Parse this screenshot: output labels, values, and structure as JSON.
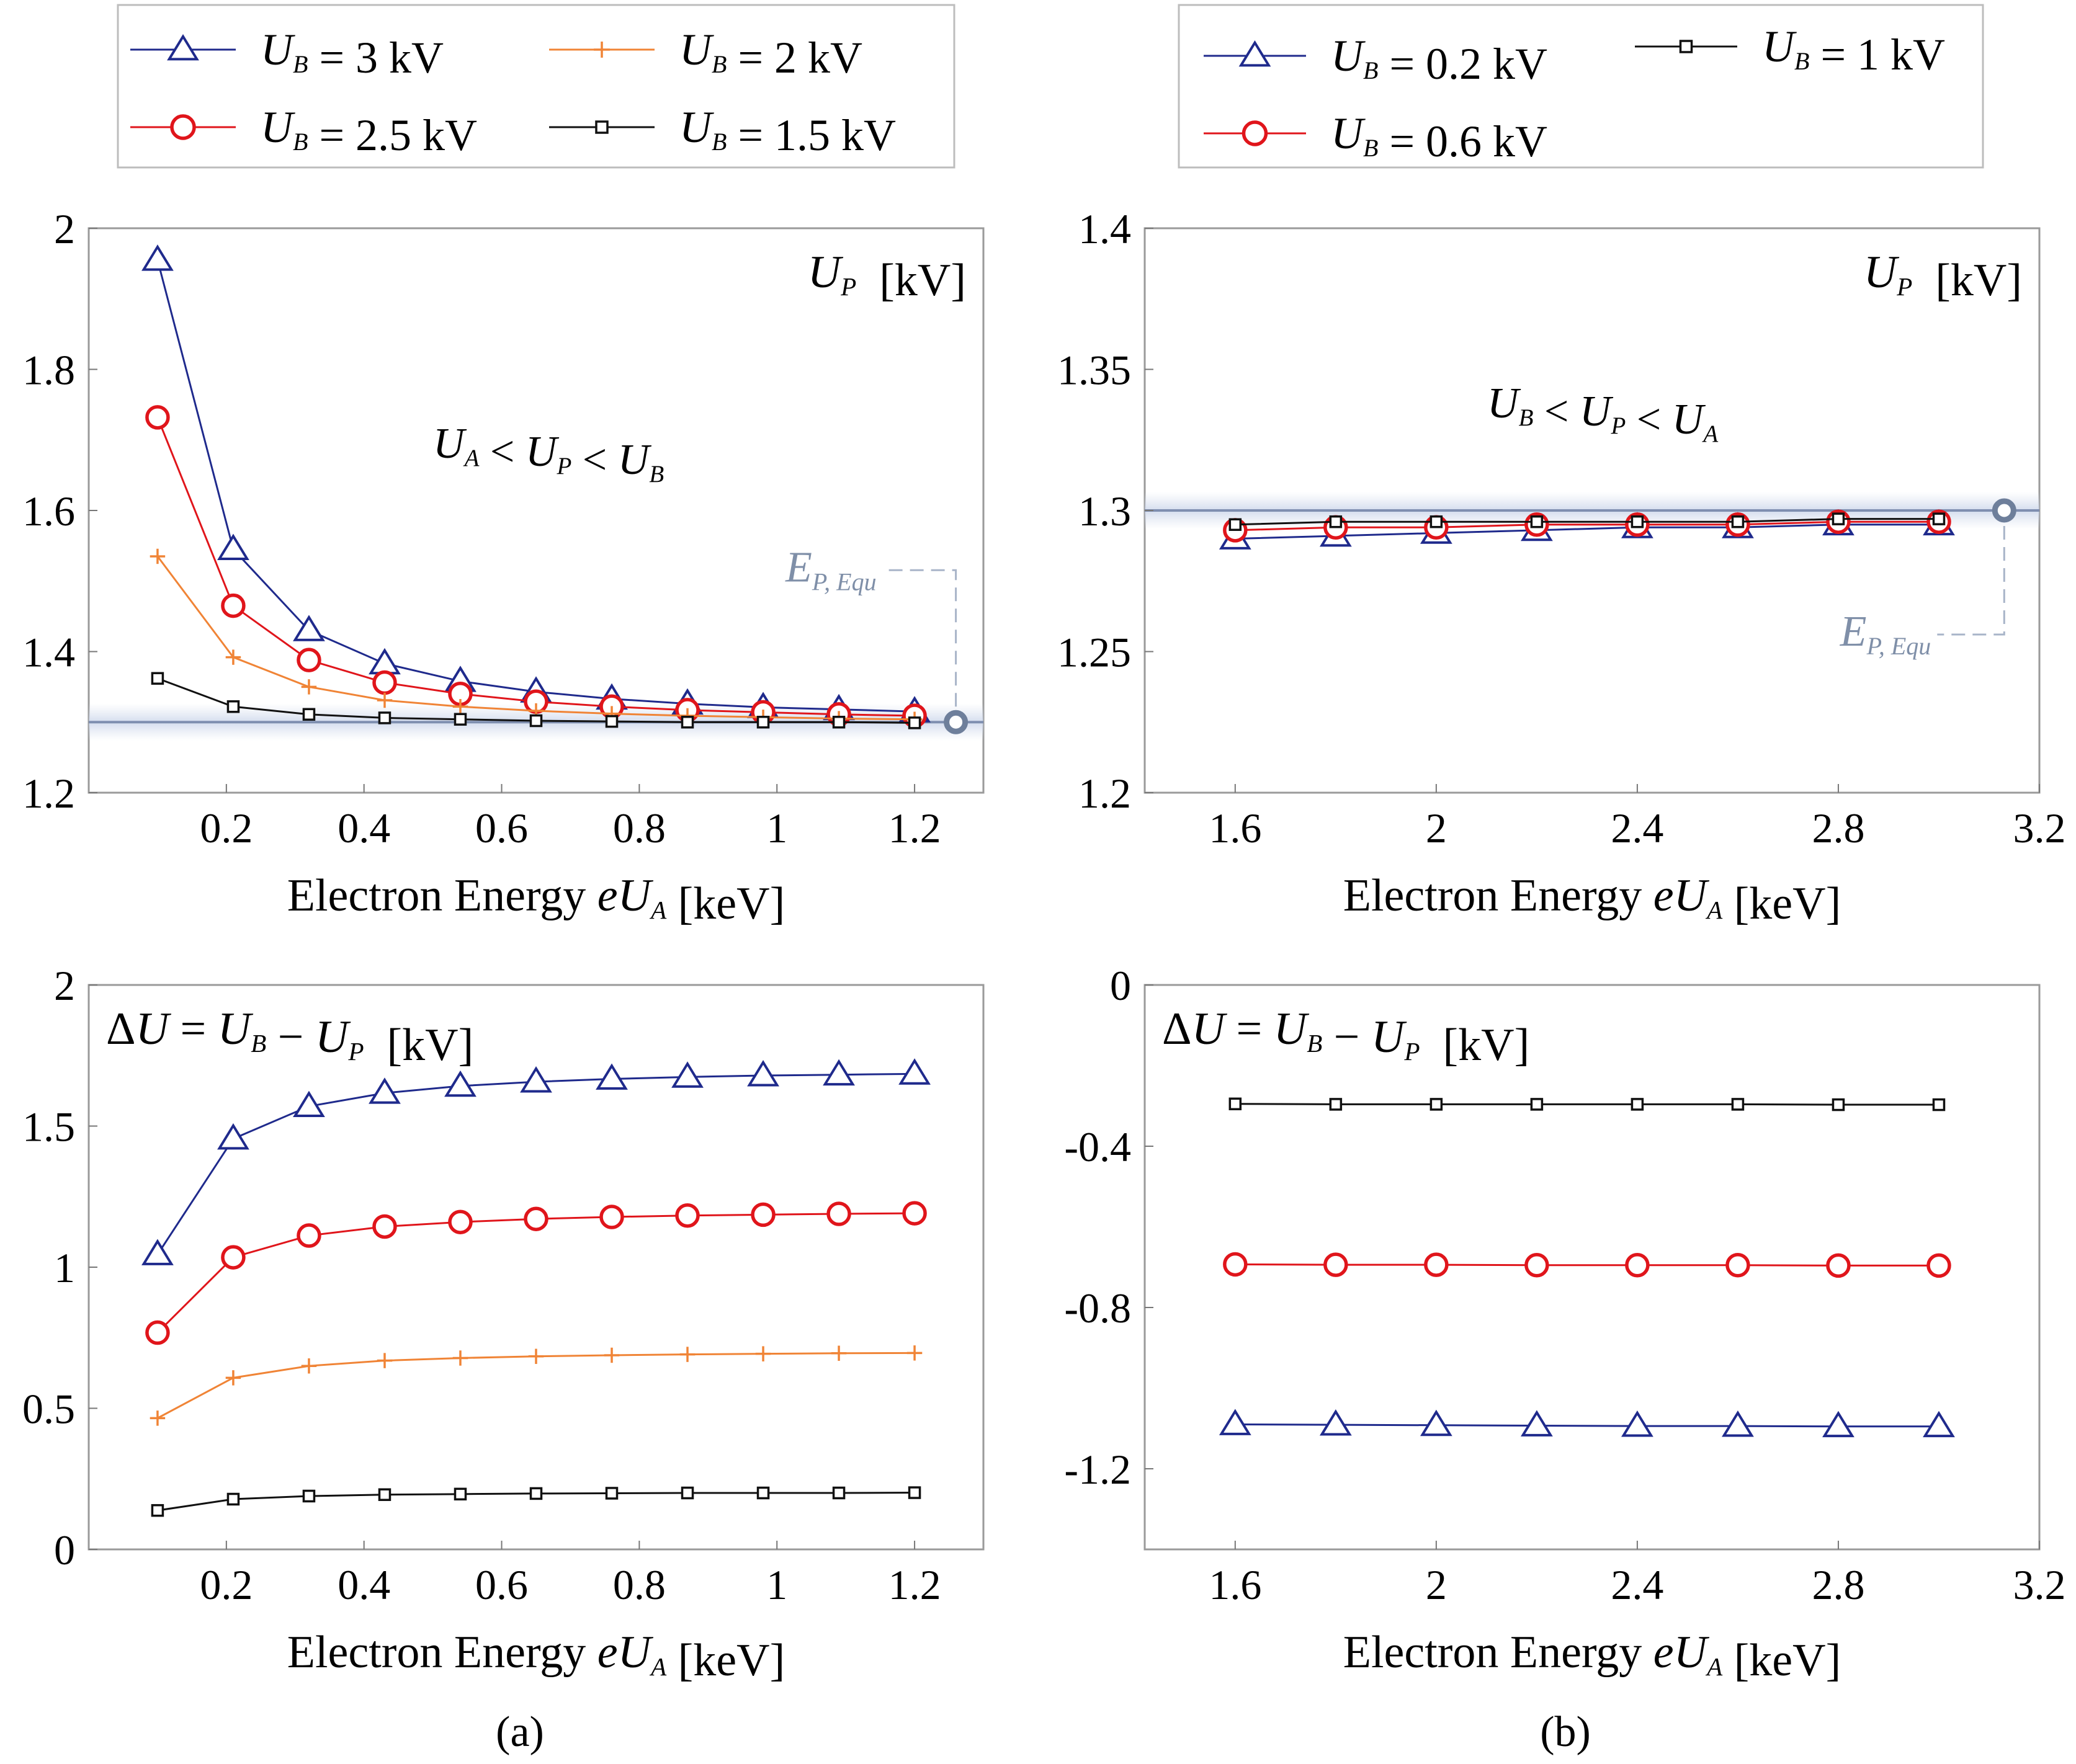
{
  "figure": {
    "panel_labels": [
      "(a)",
      "(b)"
    ],
    "xlabel_prefix": "Electron Energy ",
    "xlabel_unit": " [keV]",
    "ref_label": "E",
    "ref_subscript": "P, Equ"
  },
  "legends": [
    {
      "id": "a",
      "entries": [
        {
          "series": "3",
          "label": " = 3 kV"
        },
        {
          "series": "2",
          "label": " = 2 kV"
        },
        {
          "series": "2.5",
          "label": " = 2.5 kV"
        },
        {
          "series": "1.5",
          "label": " = 1.5 kV"
        }
      ]
    },
    {
      "id": "b",
      "entries": [
        {
          "series": "0.2",
          "label": " = 0.2 kV"
        },
        {
          "series": "1",
          "label": " = 1 kV"
        },
        {
          "series": "0.6",
          "label": " = 0.6 kV"
        }
      ]
    }
  ],
  "series_styles": {
    "3": {
      "color": "#1f2a8c",
      "marker": "triangle"
    },
    "2.5": {
      "color": "#e0151b",
      "marker": "circle"
    },
    "2": {
      "color": "#f08436",
      "marker": "plus"
    },
    "1.5": {
      "color": "#111111",
      "marker": "square"
    },
    "0.2": {
      "color": "#1f2a8c",
      "marker": "triangle"
    },
    "0.6": {
      "color": "#e0151b",
      "marker": "circle"
    },
    "1": {
      "color": "#111111",
      "marker": "square"
    }
  },
  "chart_data": [
    {
      "id": "a-top",
      "type": "line",
      "title": "U_P [kV]",
      "ylabel": "U_P [kV]",
      "xlabel": "Electron Energy eU_A [keV]",
      "xlim": [
        0,
        1.3
      ],
      "ylim": [
        1.2,
        2.0
      ],
      "xticks": [
        0.2,
        0.4,
        0.6,
        0.8,
        1,
        1.2
      ],
      "xtick_labels": [
        "0.2",
        "0.4",
        "0.6",
        "0.8",
        "1",
        "1.2"
      ],
      "yticks": [
        1.2,
        1.4,
        1.6,
        1.8,
        2.0
      ],
      "ytick_labels": [
        "1.2",
        "1.4",
        "1.6",
        "1.8",
        "2"
      ],
      "annotation": "U_A < U_P < U_B",
      "reference": {
        "value": 1.3,
        "label": "E_P, Equ",
        "x_end": 1.26
      },
      "x": [
        0.1,
        0.21,
        0.32,
        0.43,
        0.54,
        0.65,
        0.76,
        0.87,
        0.98,
        1.09,
        1.2
      ],
      "series": [
        {
          "name": "U_B = 3 kV",
          "key": "3",
          "values": [
            1.955,
            1.545,
            1.43,
            1.383,
            1.358,
            1.343,
            1.333,
            1.326,
            1.321,
            1.318,
            1.315
          ]
        },
        {
          "name": "U_B = 2.5 kV",
          "key": "2.5",
          "values": [
            1.732,
            1.465,
            1.388,
            1.356,
            1.34,
            1.329,
            1.322,
            1.317,
            1.314,
            1.311,
            1.309
          ]
        },
        {
          "name": "U_B = 2 kV",
          "key": "2",
          "values": [
            1.535,
            1.392,
            1.35,
            1.331,
            1.322,
            1.316,
            1.312,
            1.309,
            1.307,
            1.305,
            1.304
          ]
        },
        {
          "name": "U_B = 1.5 kV",
          "key": "1.5",
          "values": [
            1.362,
            1.322,
            1.311,
            1.306,
            1.304,
            1.302,
            1.301,
            1.3,
            1.3,
            1.3,
            1.299
          ]
        }
      ]
    },
    {
      "id": "b-top",
      "type": "line",
      "title": "U_P [kV]",
      "ylabel": "U_P [kV]",
      "xlabel": "Electron Energy eU_A [keV]",
      "xlim": [
        1.42,
        3.2
      ],
      "ylim": [
        1.2,
        1.4
      ],
      "xticks": [
        1.6,
        2.0,
        2.4,
        2.8,
        3.2
      ],
      "xtick_labels": [
        "1.6",
        "2",
        "2.4",
        "2.8",
        "3.2"
      ],
      "yticks": [
        1.2,
        1.25,
        1.3,
        1.35,
        1.4
      ],
      "ytick_labels": [
        "1.2",
        "1.25",
        "1.3",
        "1.35",
        "1.4"
      ],
      "annotation": "U_B < U_P < U_A",
      "reference": {
        "value": 1.3,
        "label": "E_P, Equ",
        "x_end": 3.13
      },
      "x": [
        1.6,
        1.8,
        2.0,
        2.2,
        2.4,
        2.6,
        2.8,
        3.0
      ],
      "x_note": "markers at 1.6, 1.8, 2.0, 2.2, 2.4, 2.6, 2.8, 3.0 (approx.)",
      "series": [
        {
          "name": "U_B = 0.2 kV",
          "key": "0.2",
          "values": [
            1.29,
            1.291,
            1.292,
            1.293,
            1.294,
            1.294,
            1.295,
            1.295
          ]
        },
        {
          "name": "U_B = 0.6 kV",
          "key": "0.6",
          "values": [
            1.293,
            1.294,
            1.294,
            1.295,
            1.295,
            1.295,
            1.296,
            1.296
          ]
        },
        {
          "name": "U_B = 1 kV",
          "key": "1",
          "values": [
            1.295,
            1.296,
            1.296,
            1.296,
            1.296,
            1.296,
            1.297,
            1.297
          ]
        }
      ]
    },
    {
      "id": "a-bottom",
      "type": "line",
      "title": "ΔU = U_B − U_P [kV]",
      "ylabel": "ΔU = U_B − U_P [kV]",
      "xlabel": "Electron Energy eU_A [keV]",
      "xlim": [
        0,
        1.3
      ],
      "ylim": [
        0,
        2.0
      ],
      "xticks": [
        0.2,
        0.4,
        0.6,
        0.8,
        1,
        1.2
      ],
      "xtick_labels": [
        "0.2",
        "0.4",
        "0.6",
        "0.8",
        "1",
        "1.2"
      ],
      "yticks": [
        0,
        0.5,
        1,
        1.5,
        2
      ],
      "ytick_labels": [
        "0",
        "0.5",
        "1",
        "1.5",
        "2"
      ],
      "x": [
        0.1,
        0.21,
        0.32,
        0.43,
        0.54,
        0.65,
        0.76,
        0.87,
        0.98,
        1.09,
        1.2
      ],
      "series": [
        {
          "name": "U_B = 3 kV",
          "key": "3",
          "values": [
            1.045,
            1.455,
            1.57,
            1.617,
            1.642,
            1.657,
            1.667,
            1.674,
            1.679,
            1.682,
            1.685
          ]
        },
        {
          "name": "U_B = 2.5 kV",
          "key": "2.5",
          "values": [
            0.768,
            1.035,
            1.112,
            1.144,
            1.16,
            1.171,
            1.178,
            1.183,
            1.186,
            1.189,
            1.191
          ]
        },
        {
          "name": "U_B = 2 kV",
          "key": "2",
          "values": [
            0.465,
            0.608,
            0.65,
            0.669,
            0.678,
            0.684,
            0.688,
            0.691,
            0.693,
            0.695,
            0.696
          ]
        },
        {
          "name": "U_B = 1.5 kV",
          "key": "1.5",
          "values": [
            0.138,
            0.178,
            0.189,
            0.194,
            0.196,
            0.198,
            0.199,
            0.2,
            0.2,
            0.2,
            0.201
          ]
        }
      ]
    },
    {
      "id": "b-bottom",
      "type": "line",
      "title": "ΔU = U_B − U_P [kV]",
      "ylabel": "ΔU = U_B − U_P [kV]",
      "xlabel": "Electron Energy eU_A [keV]",
      "xlim": [
        1.42,
        3.2
      ],
      "ylim": [
        -1.4,
        0
      ],
      "xticks": [
        1.6,
        2.0,
        2.4,
        2.8,
        3.2
      ],
      "xtick_labels": [
        "1.6",
        "2",
        "2.4",
        "2.8",
        "3.2"
      ],
      "yticks": [
        -1.2,
        -0.8,
        -0.4,
        0
      ],
      "ytick_labels": [
        "-1.2",
        "-0.8",
        "-0.4",
        "0"
      ],
      "x": [
        1.6,
        1.8,
        2.0,
        2.2,
        2.4,
        2.6,
        2.8,
        3.0
      ],
      "x_note": "markers at 1.6, 1.8, 2.0, 2.2, 2.4, 2.6, 2.8, 3.0 (approx.)",
      "series": [
        {
          "name": "U_B = 1 kV",
          "key": "1",
          "values": [
            -0.295,
            -0.296,
            -0.296,
            -0.296,
            -0.296,
            -0.296,
            -0.297,
            -0.297
          ]
        },
        {
          "name": "U_B = 0.6 kV",
          "key": "0.6",
          "values": [
            -0.693,
            -0.694,
            -0.694,
            -0.695,
            -0.695,
            -0.695,
            -0.696,
            -0.696
          ]
        },
        {
          "name": "U_B = 0.2 kV",
          "key": "0.2",
          "values": [
            -1.09,
            -1.091,
            -1.092,
            -1.093,
            -1.094,
            -1.094,
            -1.095,
            -1.095
          ]
        }
      ]
    }
  ]
}
